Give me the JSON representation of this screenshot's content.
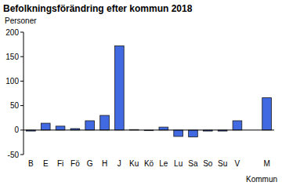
{
  "chart_data": {
    "type": "bar",
    "title": "Befolkningsförändring efter kommun 2018",
    "y_label": "Personer",
    "x_label": "Kommun",
    "categories": [
      "B",
      "E",
      "Fi",
      "Fö",
      "G",
      "H",
      "J",
      "Ku",
      "Kö",
      "Le",
      "Lu",
      "Sa",
      "So",
      "Su",
      "V",
      null,
      "M"
    ],
    "values": [
      -2,
      14,
      8,
      3,
      19,
      30,
      172,
      1,
      0,
      6,
      -13,
      -14,
      -2,
      -2,
      19,
      null,
      66
    ],
    "color": "#4169e1",
    "ylim": [
      -50,
      200
    ],
    "yticks": [
      -50,
      0,
      50,
      100,
      150,
      200
    ],
    "grid": false
  }
}
